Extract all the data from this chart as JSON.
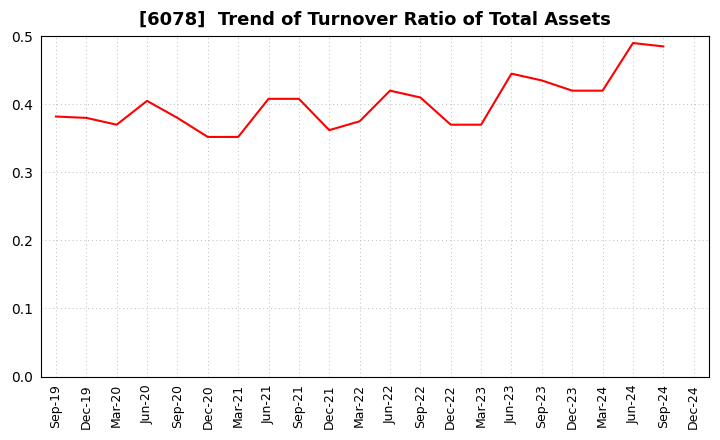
{
  "title": "[6078]  Trend of Turnover Ratio of Total Assets",
  "x_labels": [
    "Sep-19",
    "Dec-19",
    "Mar-20",
    "Jun-20",
    "Sep-20",
    "Dec-20",
    "Mar-21",
    "Jun-21",
    "Sep-21",
    "Dec-21",
    "Mar-22",
    "Jun-22",
    "Sep-22",
    "Dec-22",
    "Mar-23",
    "Jun-23",
    "Sep-23",
    "Dec-23",
    "Mar-24",
    "Jun-24",
    "Sep-24",
    "Dec-24"
  ],
  "y_values": [
    0.382,
    0.38,
    0.37,
    0.405,
    0.38,
    0.352,
    0.352,
    0.408,
    0.408,
    0.362,
    0.375,
    0.42,
    0.41,
    0.37,
    0.37,
    0.445,
    0.435,
    0.42,
    0.42,
    0.49,
    0.485,
    null
  ],
  "line_color": "#FF0000",
  "line_width": 1.5,
  "ylim": [
    0.0,
    0.5
  ],
  "yticks": [
    0.0,
    0.1,
    0.2,
    0.3,
    0.4,
    0.5
  ],
  "background_color": "#ffffff",
  "grid_color": "#bbbbbb",
  "title_fontsize": 13,
  "tick_fontsize": 9,
  "title_fontweight": "bold"
}
